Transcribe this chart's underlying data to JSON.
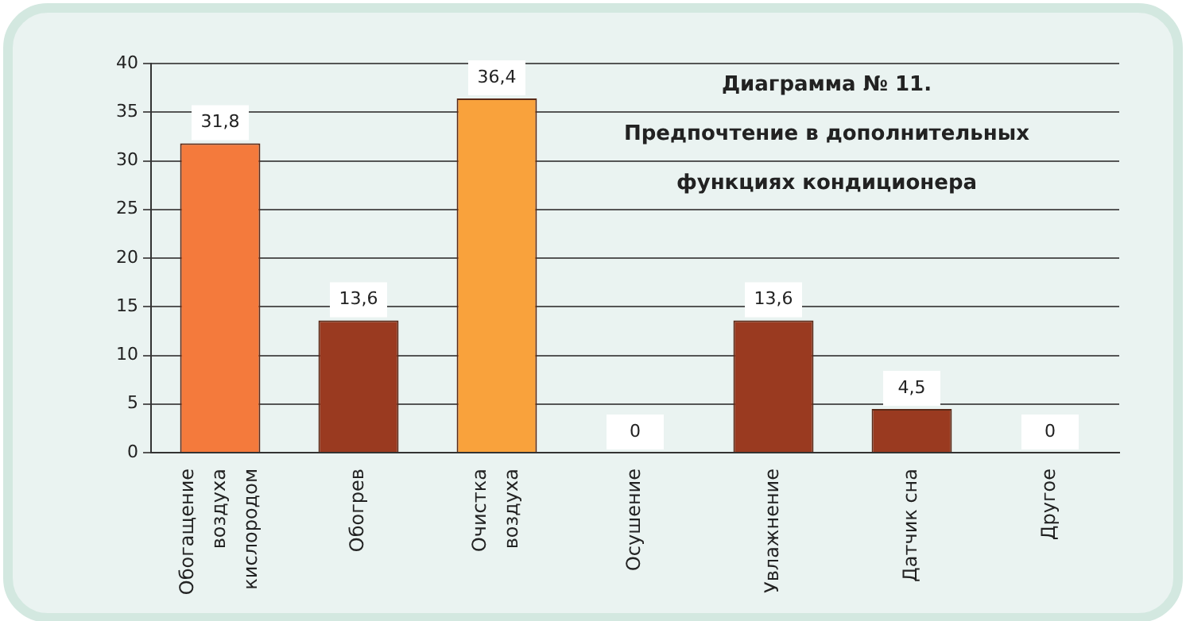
{
  "chart_data": {
    "type": "bar",
    "title": "Диаграмма № 11.",
    "subtitle": "Предпочтение в дополнительных функциях кондиционера",
    "categories": [
      "Обогащение воздуха кислородом",
      "Обогрев",
      "Очистка воздуха",
      "Осушение",
      "Увлажнение",
      "Датчик сна",
      "Другое"
    ],
    "values": [
      31.8,
      13.6,
      36.4,
      0,
      13.6,
      4.5,
      0
    ],
    "colors": [
      "#f47a3c",
      "#9a3a20",
      "#f9a23c",
      "#9a3a20",
      "#9a3a20",
      "#9a3a20",
      "#9a3a20"
    ],
    "value_labels": [
      "31,8",
      "13,6",
      "36,4",
      "0",
      "13,6",
      "4,5",
      "0"
    ],
    "ylim": [
      0,
      40
    ],
    "yticks": [
      0,
      5,
      10,
      15,
      20,
      25,
      30,
      35,
      40
    ],
    "grid": "y",
    "legend": false
  }
}
